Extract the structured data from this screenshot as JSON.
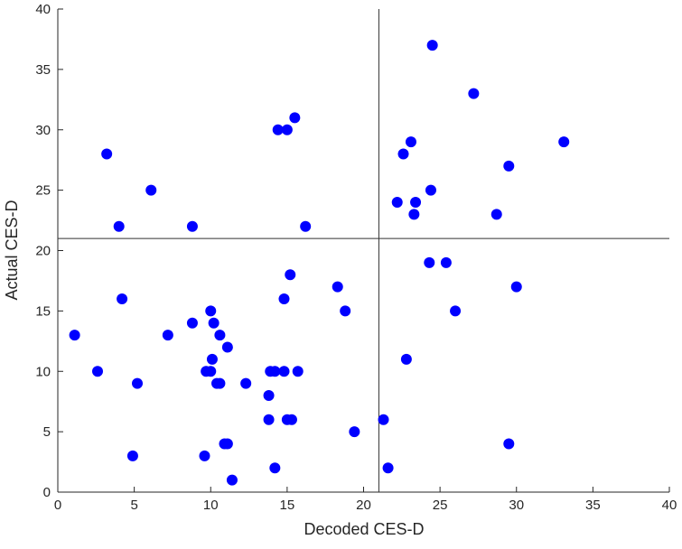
{
  "chart_data": {
    "type": "scatter",
    "title": "",
    "xlabel": "Decoded CES-D",
    "ylabel": "Actual CES-D",
    "xlim": [
      0,
      40
    ],
    "ylim": [
      0,
      40
    ],
    "xticks": [
      0,
      5,
      10,
      15,
      20,
      25,
      30,
      35,
      40
    ],
    "yticks": [
      0,
      5,
      10,
      15,
      20,
      25,
      30,
      35,
      40
    ],
    "grid": false,
    "marker_color": "#0000ff",
    "reference_lines": {
      "x": 21,
      "y": 21
    },
    "series": [
      {
        "points": [
          {
            "x": 1.1,
            "y": 13
          },
          {
            "x": 2.6,
            "y": 10
          },
          {
            "x": 3.2,
            "y": 28
          },
          {
            "x": 4.0,
            "y": 22
          },
          {
            "x": 4.2,
            "y": 16
          },
          {
            "x": 4.9,
            "y": 3
          },
          {
            "x": 5.2,
            "y": 9
          },
          {
            "x": 6.1,
            "y": 25
          },
          {
            "x": 7.2,
            "y": 13
          },
          {
            "x": 8.8,
            "y": 22
          },
          {
            "x": 8.8,
            "y": 14
          },
          {
            "x": 9.6,
            "y": 3
          },
          {
            "x": 9.7,
            "y": 10
          },
          {
            "x": 10.0,
            "y": 15
          },
          {
            "x": 10.0,
            "y": 10
          },
          {
            "x": 10.1,
            "y": 11
          },
          {
            "x": 10.2,
            "y": 14
          },
          {
            "x": 10.4,
            "y": 9
          },
          {
            "x": 10.6,
            "y": 13
          },
          {
            "x": 10.6,
            "y": 9
          },
          {
            "x": 10.9,
            "y": 4
          },
          {
            "x": 11.1,
            "y": 4
          },
          {
            "x": 11.1,
            "y": 12
          },
          {
            "x": 11.4,
            "y": 1
          },
          {
            "x": 12.3,
            "y": 9
          },
          {
            "x": 13.8,
            "y": 6
          },
          {
            "x": 13.8,
            "y": 8
          },
          {
            "x": 13.9,
            "y": 10
          },
          {
            "x": 14.2,
            "y": 2
          },
          {
            "x": 14.2,
            "y": 10
          },
          {
            "x": 14.4,
            "y": 30
          },
          {
            "x": 14.8,
            "y": 10
          },
          {
            "x": 14.8,
            "y": 16
          },
          {
            "x": 15.0,
            "y": 30
          },
          {
            "x": 15.0,
            "y": 6
          },
          {
            "x": 15.2,
            "y": 18
          },
          {
            "x": 15.3,
            "y": 6
          },
          {
            "x": 15.5,
            "y": 31
          },
          {
            "x": 15.7,
            "y": 10
          },
          {
            "x": 16.2,
            "y": 22
          },
          {
            "x": 18.3,
            "y": 17
          },
          {
            "x": 18.8,
            "y": 15
          },
          {
            "x": 19.4,
            "y": 5
          },
          {
            "x": 21.3,
            "y": 6
          },
          {
            "x": 21.6,
            "y": 2
          },
          {
            "x": 22.2,
            "y": 24
          },
          {
            "x": 22.6,
            "y": 28
          },
          {
            "x": 22.8,
            "y": 11
          },
          {
            "x": 23.1,
            "y": 29
          },
          {
            "x": 23.3,
            "y": 23
          },
          {
            "x": 23.4,
            "y": 24
          },
          {
            "x": 24.3,
            "y": 19
          },
          {
            "x": 24.4,
            "y": 25
          },
          {
            "x": 24.5,
            "y": 37
          },
          {
            "x": 25.4,
            "y": 19
          },
          {
            "x": 26.0,
            "y": 15
          },
          {
            "x": 27.2,
            "y": 33
          },
          {
            "x": 28.7,
            "y": 23
          },
          {
            "x": 29.5,
            "y": 27
          },
          {
            "x": 29.5,
            "y": 4
          },
          {
            "x": 30.0,
            "y": 17
          },
          {
            "x": 33.1,
            "y": 29
          }
        ]
      }
    ]
  }
}
